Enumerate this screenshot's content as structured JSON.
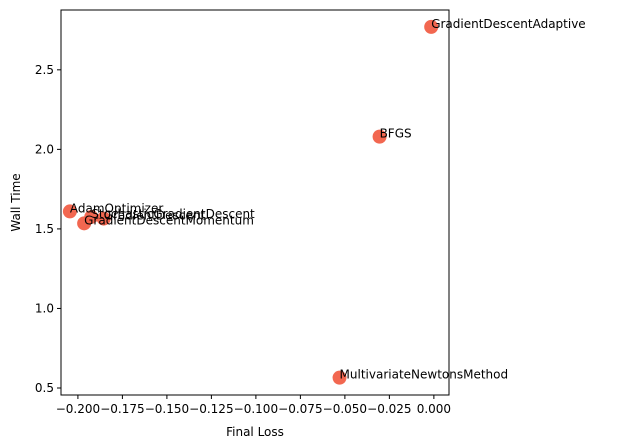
{
  "chart_data": {
    "type": "scatter",
    "title": "",
    "xlabel": "Final Loss",
    "ylabel": "Wall Time",
    "xlim": [
      -0.2095,
      0.0085
    ],
    "ylim": [
      0.456,
      2.876
    ],
    "x_ticks": [
      -0.2,
      -0.175,
      -0.15,
      -0.125,
      -0.1,
      -0.075,
      -0.05,
      -0.025,
      0.0
    ],
    "x_tick_labels": [
      "−0.200",
      "−0.175",
      "−0.150",
      "−0.125",
      "−0.100",
      "−0.075",
      "−0.050",
      "−0.025",
      "0.000"
    ],
    "y_ticks": [
      0.5,
      1.0,
      1.5,
      2.0,
      2.5
    ],
    "y_tick_labels": [
      "0.5",
      "1.0",
      "1.5",
      "2.0",
      "2.5"
    ],
    "grid": false,
    "marker_color": "#f15f47",
    "points": [
      {
        "label": "GradientDescentAdaptive",
        "x": -0.0015,
        "y": 2.77
      },
      {
        "label": "BFGS",
        "x": -0.0305,
        "y": 2.08
      },
      {
        "label": "AdamOptimizer",
        "x": -0.2045,
        "y": 1.61
      },
      {
        "label": "StochasticGradientDescent",
        "x": -0.1925,
        "y": 1.575
      },
      {
        "label": "GradientDescent",
        "x": -0.1855,
        "y": 1.565
      },
      {
        "label": "GradientDescentMomentum",
        "x": -0.1965,
        "y": 1.535
      },
      {
        "label": "MultivariateNewtonsMethod",
        "x": -0.053,
        "y": 0.565
      }
    ]
  }
}
